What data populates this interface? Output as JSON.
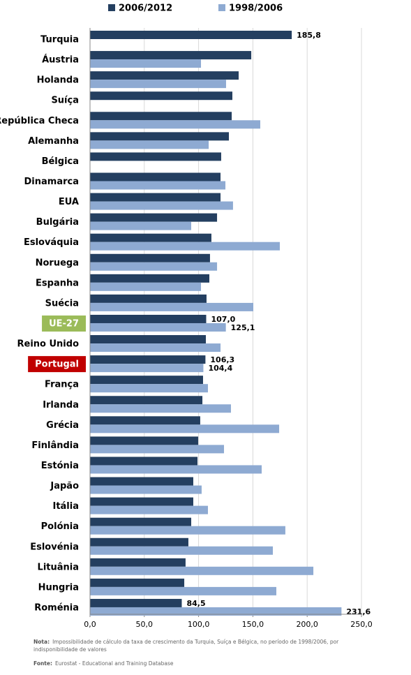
{
  "chart_data": {
    "type": "hbar",
    "categories": [
      "Turquia",
      "Áustria",
      "Holanda",
      "Suíça",
      "República Checa",
      "Alemanha",
      "Bélgica",
      "Dinamarca",
      "EUA",
      "Bulgária",
      "Eslováquia",
      "Noruega",
      "Espanha",
      "Suécia",
      "UE-27",
      "Reino Unido",
      "Portugal",
      "França",
      "Irlanda",
      "Grécia",
      "Finlândia",
      "Estónia",
      "Japão",
      "Itália",
      "Polónia",
      "Eslovénia",
      "Lituânia",
      "Hungria",
      "Roménia"
    ],
    "series": [
      {
        "name": "2006/2012",
        "color": "#243f60",
        "values": [
          185.8,
          148.5,
          136.9,
          131.1,
          130.5,
          127.9,
          120.8,
          120.2,
          120.2,
          117.0,
          111.8,
          110.5,
          109.9,
          107.3,
          107.0,
          106.7,
          106.3,
          104.1,
          103.5,
          101.5,
          99.6,
          99.0,
          95.1,
          95.1,
          93.2,
          90.6,
          88.0,
          86.8,
          84.5
        ],
        "value_labels": [
          "185,8",
          null,
          null,
          null,
          null,
          null,
          null,
          null,
          null,
          null,
          null,
          null,
          null,
          null,
          "107,0",
          null,
          "106,3",
          null,
          null,
          null,
          null,
          null,
          null,
          null,
          null,
          null,
          null,
          null,
          "84,5"
        ]
      },
      {
        "name": "1998/2006",
        "color": "#8eaad2",
        "values": [
          null,
          102.2,
          125.3,
          null,
          156.8,
          109.3,
          null,
          124.7,
          131.7,
          93.2,
          174.8,
          117.0,
          102.2,
          150.4,
          125.1,
          120.2,
          104.4,
          108.6,
          129.8,
          174.2,
          123.4,
          158.1,
          102.8,
          108.6,
          179.9,
          168.4,
          205.7,
          171.6,
          231.6
        ],
        "value_labels": [
          null,
          null,
          null,
          null,
          null,
          null,
          null,
          null,
          null,
          null,
          null,
          null,
          null,
          null,
          "125,1",
          null,
          "104,4",
          null,
          null,
          null,
          null,
          null,
          null,
          null,
          null,
          null,
          null,
          null,
          "231,6"
        ]
      }
    ],
    "xlim": [
      0,
      250
    ],
    "xticks": [
      {
        "value": 0,
        "label": "0,0"
      },
      {
        "value": 50,
        "label": "50,0"
      },
      {
        "value": 100,
        "label": "100,0"
      },
      {
        "value": 150,
        "label": "150,0"
      },
      {
        "value": 200,
        "label": "200,0"
      },
      {
        "value": 250,
        "label": "250,0"
      }
    ],
    "grid": true,
    "legend": "top",
    "highlights": {
      "UE-27": "#9bbb59",
      "Portugal": "#c00000"
    },
    "notes": [
      {
        "label": "Nota:",
        "lines": [
          "Impossibilidade de cálculo da taxa de crescimento da Turquia, Suíça e Bélgica, no período de 1998/2006, por",
          "indisponibilidade de valores"
        ]
      },
      {
        "label": "Fonte:",
        "lines": [
          "Eurostat - Educational and Training Database"
        ]
      }
    ]
  }
}
